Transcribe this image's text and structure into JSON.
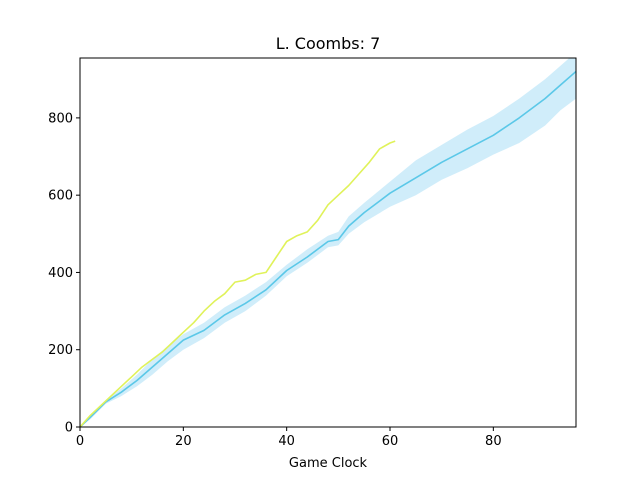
{
  "chart_data": {
    "type": "line",
    "title": "L. Coombs: 7",
    "xlabel": "Game Clock",
    "ylabel": "",
    "xlim": [
      0,
      96
    ],
    "ylim": [
      0,
      955
    ],
    "xticks": [
      0,
      20,
      40,
      60,
      80
    ],
    "yticks": [
      0,
      200,
      400,
      600,
      800
    ],
    "grid": false,
    "legend": "none",
    "series": [
      {
        "color": "#5bc8e8",
        "band_color": "#a9def5",
        "x": [
          0,
          2,
          5,
          8,
          11,
          14,
          17,
          20,
          24,
          28,
          32,
          36,
          40,
          44,
          48,
          50,
          52,
          55,
          60,
          65,
          70,
          75,
          80,
          85,
          90,
          93,
          96
        ],
        "y": [
          0,
          25,
          65,
          90,
          120,
          155,
          190,
          225,
          250,
          290,
          320,
          355,
          405,
          440,
          480,
          485,
          520,
          555,
          605,
          645,
          685,
          720,
          755,
          800,
          850,
          885,
          920
        ],
        "low": [
          0,
          20,
          60,
          80,
          105,
          135,
          170,
          200,
          230,
          270,
          300,
          340,
          390,
          425,
          465,
          470,
          500,
          530,
          570,
          600,
          640,
          670,
          705,
          735,
          780,
          820,
          850
        ],
        "high": [
          0,
          30,
          70,
          100,
          135,
          175,
          210,
          240,
          270,
          310,
          340,
          375,
          420,
          460,
          495,
          505,
          545,
          580,
          635,
          690,
          730,
          770,
          805,
          850,
          900,
          935,
          970
        ]
      },
      {
        "color": "#e0f25a",
        "x": [
          0,
          2,
          4,
          6,
          8,
          10,
          12,
          14,
          16,
          18,
          20,
          22,
          24,
          26,
          28,
          30,
          32,
          34,
          36,
          38,
          40,
          42,
          44,
          46,
          48,
          50,
          52,
          54,
          56,
          58,
          60,
          61
        ],
        "y": [
          0,
          30,
          55,
          80,
          105,
          130,
          155,
          175,
          195,
          220,
          245,
          270,
          300,
          325,
          345,
          375,
          380,
          395,
          400,
          440,
          480,
          495,
          505,
          535,
          575,
          600,
          625,
          655,
          685,
          720,
          735,
          740
        ]
      }
    ]
  }
}
